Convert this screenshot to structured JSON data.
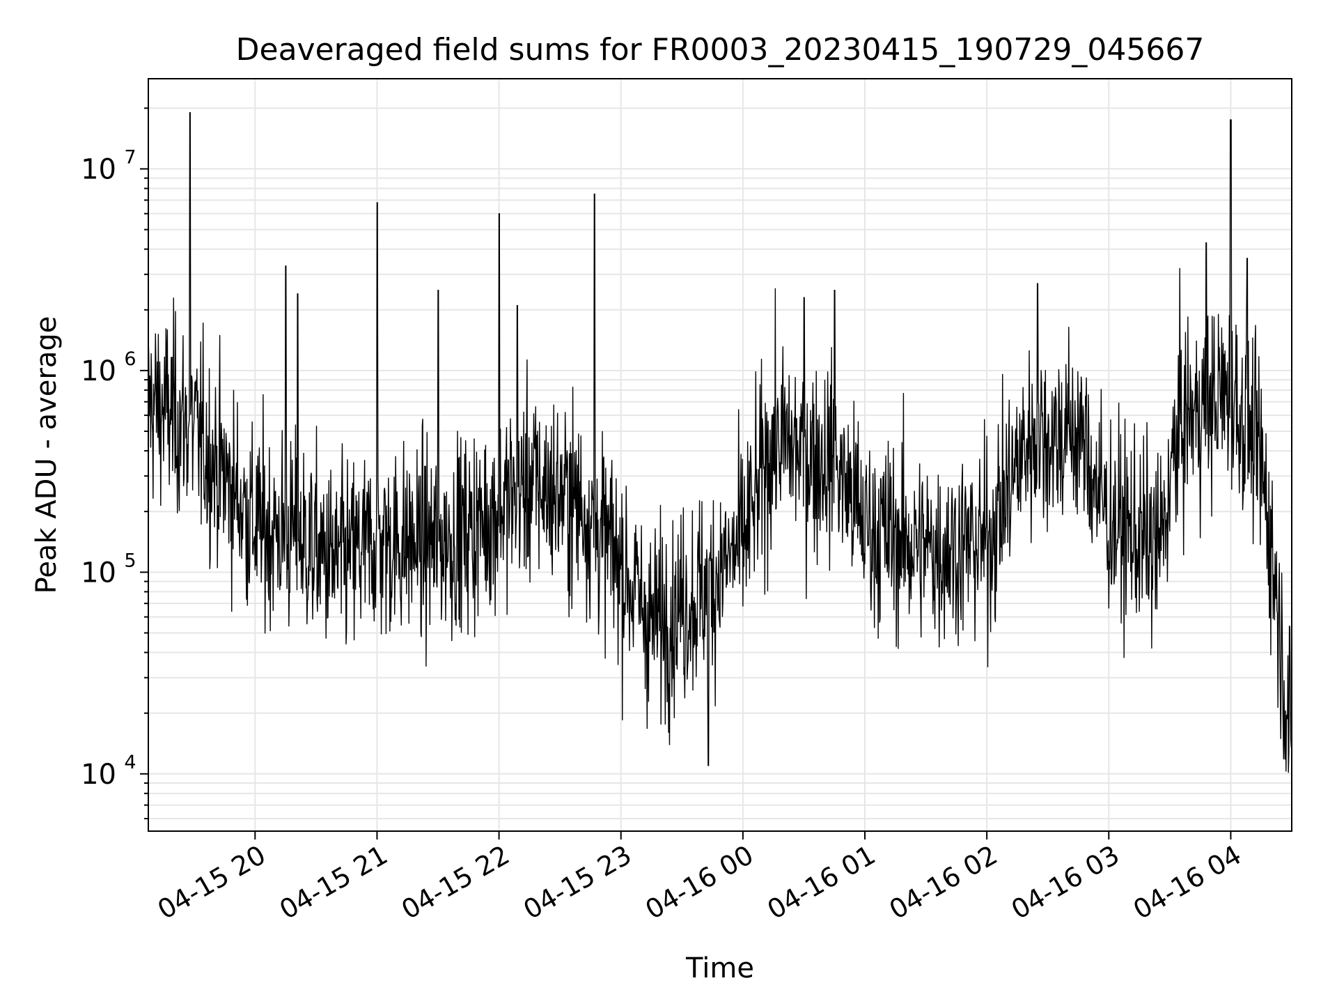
{
  "chart_data": {
    "type": "line",
    "title": "Deaveraged field sums for FR0003_20230415_190729_045667",
    "xlabel": "Time",
    "ylabel": "Peak ADU - average",
    "yscale": "log",
    "ylim": [
      5200,
      28000000
    ],
    "xlim": [
      "2023-04-15 19:07:29",
      "2023-04-16 04:30:00"
    ],
    "grid": true,
    "grid_color": "#e6e6e6",
    "line_color": "#000000",
    "x_ticks": [
      {
        "date": "2023-04-15 20:00",
        "label": "04-15 20"
      },
      {
        "date": "2023-04-15 21:00",
        "label": "04-15 21"
      },
      {
        "date": "2023-04-15 22:00",
        "label": "04-15 22"
      },
      {
        "date": "2023-04-15 23:00",
        "label": "04-15 23"
      },
      {
        "date": "2023-04-16 00:00",
        "label": "04-16 00"
      },
      {
        "date": "2023-04-16 01:00",
        "label": "04-16 01"
      },
      {
        "date": "2023-04-16 02:00",
        "label": "04-16 02"
      },
      {
        "date": "2023-04-16 03:00",
        "label": "04-16 03"
      },
      {
        "date": "2023-04-16 04:00",
        "label": "04-16 04"
      }
    ],
    "y_ticks": [
      {
        "value": 10000,
        "base": "10",
        "exp": "4"
      },
      {
        "value": 100000,
        "base": "10",
        "exp": "5"
      },
      {
        "value": 1000000,
        "base": "10",
        "exp": "6"
      },
      {
        "value": 10000000,
        "base": "10",
        "exp": "7"
      }
    ],
    "series": [
      {
        "baseline": [
          [
            "2023-04-15 19:07:29",
            700000
          ],
          [
            "2023-04-15 19:20",
            600000
          ],
          [
            "2023-04-15 19:30",
            500000
          ],
          [
            "2023-04-15 19:45",
            300000
          ],
          [
            "2023-04-15 20:00",
            170000
          ],
          [
            "2023-04-15 20:20",
            150000
          ],
          [
            "2023-04-15 20:40",
            110000
          ],
          [
            "2023-04-15 21:00",
            140000
          ],
          [
            "2023-04-15 21:30",
            140000
          ],
          [
            "2023-04-15 21:50",
            170000
          ],
          [
            "2023-04-15 22:15",
            280000
          ],
          [
            "2023-04-15 22:40",
            220000
          ],
          [
            "2023-04-15 23:00",
            110000
          ],
          [
            "2023-04-15 23:15",
            55000
          ],
          [
            "2023-04-15 23:40",
            80000
          ],
          [
            "2023-04-16 00:00",
            140000
          ],
          [
            "2023-04-16 00:15",
            450000
          ],
          [
            "2023-04-16 00:45",
            350000
          ],
          [
            "2023-04-16 01:00",
            170000
          ],
          [
            "2023-04-16 01:30",
            130000
          ],
          [
            "2023-04-16 02:00",
            140000
          ],
          [
            "2023-04-16 02:20",
            450000
          ],
          [
            "2023-04-16 02:45",
            500000
          ],
          [
            "2023-04-16 03:00",
            180000
          ],
          [
            "2023-04-16 03:25",
            130000
          ],
          [
            "2023-04-16 03:35",
            550000
          ],
          [
            "2023-04-16 04:00",
            800000
          ],
          [
            "2023-04-16 04:15",
            350000
          ],
          [
            "2023-04-16 04:22",
            90000
          ],
          [
            "2023-04-16 04:30",
            12000
          ]
        ],
        "spikes": [
          [
            "2023-04-15 19:28",
            19000000
          ],
          [
            "2023-04-15 20:15",
            3300000
          ],
          [
            "2023-04-15 20:21",
            2400000
          ],
          [
            "2023-04-15 21:00",
            6800000
          ],
          [
            "2023-04-15 21:30",
            2500000
          ],
          [
            "2023-04-15 22:00",
            6000000
          ],
          [
            "2023-04-15 22:09",
            2100000
          ],
          [
            "2023-04-15 22:47",
            7500000
          ],
          [
            "2023-04-15 23:43",
            11000
          ],
          [
            "2023-04-16 00:30",
            2300000
          ],
          [
            "2023-04-16 00:45",
            2500000
          ],
          [
            "2023-04-16 02:25",
            2700000
          ],
          [
            "2023-04-16 03:48",
            4300000
          ],
          [
            "2023-04-16 04:00",
            17500000
          ],
          [
            "2023-04-16 04:08",
            3600000
          ]
        ]
      }
    ]
  }
}
